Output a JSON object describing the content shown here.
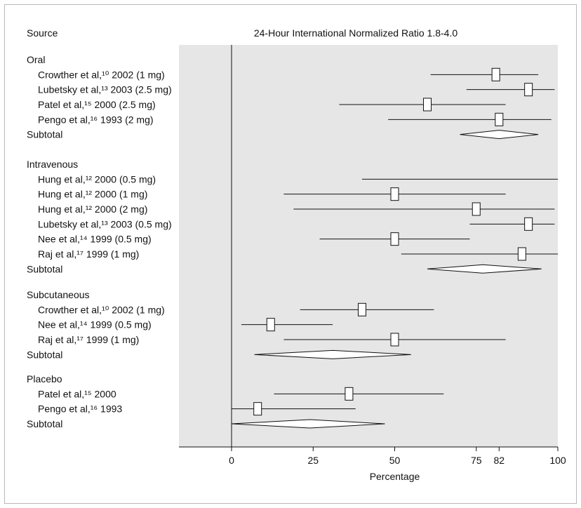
{
  "chart_data": {
    "type": "forest",
    "title": "24-Hour International Normalized Ratio 1.8-4.0",
    "source_header": "Source",
    "xlabel": "Percentage",
    "xlim": [
      -17,
      100
    ],
    "xticks": [
      0,
      25,
      50,
      75,
      82,
      100
    ],
    "groups": [
      {
        "label": "Oral",
        "studies": [
          {
            "label": "Crowther et al,¹⁰ 2002 (1 mg)",
            "point": 81,
            "low": 61,
            "high": 94
          },
          {
            "label": "Lubetsky et al,¹³ 2003 (2.5 mg)",
            "point": 91,
            "low": 72,
            "high": 99
          },
          {
            "label": "Patel et al,¹⁵ 2000 (2.5 mg)",
            "point": 60,
            "low": 33,
            "high": 84
          },
          {
            "label": "Pengo et al,¹⁶ 1993 (2 mg)",
            "point": 82,
            "low": 48,
            "high": 98
          }
        ],
        "subtotal": {
          "label": "Subtotal",
          "point": 82,
          "low": 70,
          "high": 94
        }
      },
      {
        "label": "Intravenous",
        "studies": [
          {
            "label": "Hung et al,¹² 2000 (0.5 mg)",
            "point": null,
            "low": 40,
            "high": 100
          },
          {
            "label": "Hung et al,¹² 2000 (1 mg)",
            "point": 50,
            "low": 16,
            "high": 84
          },
          {
            "label": "Hung et al,¹² 2000 (2 mg)",
            "point": 75,
            "low": 19,
            "high": 99
          },
          {
            "label": "Lubetsky et al,¹³ 2003 (0.5 mg)",
            "point": 91,
            "low": 73,
            "high": 99
          },
          {
            "label": "Nee et al,¹⁴ 1999 (0.5 mg)",
            "point": 50,
            "low": 27,
            "high": 73
          },
          {
            "label": "Raj et al,¹⁷ 1999 (1 mg)",
            "point": 89,
            "low": 52,
            "high": 100
          }
        ],
        "subtotal": {
          "label": "Subtotal",
          "point": 77,
          "low": 60,
          "high": 95
        }
      },
      {
        "label": "Subcutaneous",
        "studies": [
          {
            "label": "Crowther et al,¹⁰ 2002 (1 mg)",
            "point": 40,
            "low": 21,
            "high": 62
          },
          {
            "label": "Nee et al,¹⁴ 1999 (0.5 mg)",
            "point": 12,
            "low": 3,
            "high": 31
          },
          {
            "label": "Raj et al,¹⁷ 1999 (1 mg)",
            "point": 50,
            "low": 16,
            "high": 84
          }
        ],
        "subtotal": {
          "label": "Subtotal",
          "point": 31,
          "low": 7,
          "high": 55
        }
      },
      {
        "label": "Placebo",
        "studies": [
          {
            "label": "Patel et al,¹⁵ 2000",
            "point": 36,
            "low": 13,
            "high": 65
          },
          {
            "label": "Pengo et al,¹⁶ 1993",
            "point": 8,
            "low": 0,
            "high": 38
          }
        ],
        "subtotal": {
          "label": "Subtotal",
          "point": 24,
          "low": 0,
          "high": 47
        }
      }
    ],
    "colors": {
      "plot_background": "#e6e6e6",
      "ink": "#111111",
      "frame": "#b9b9b9"
    }
  }
}
